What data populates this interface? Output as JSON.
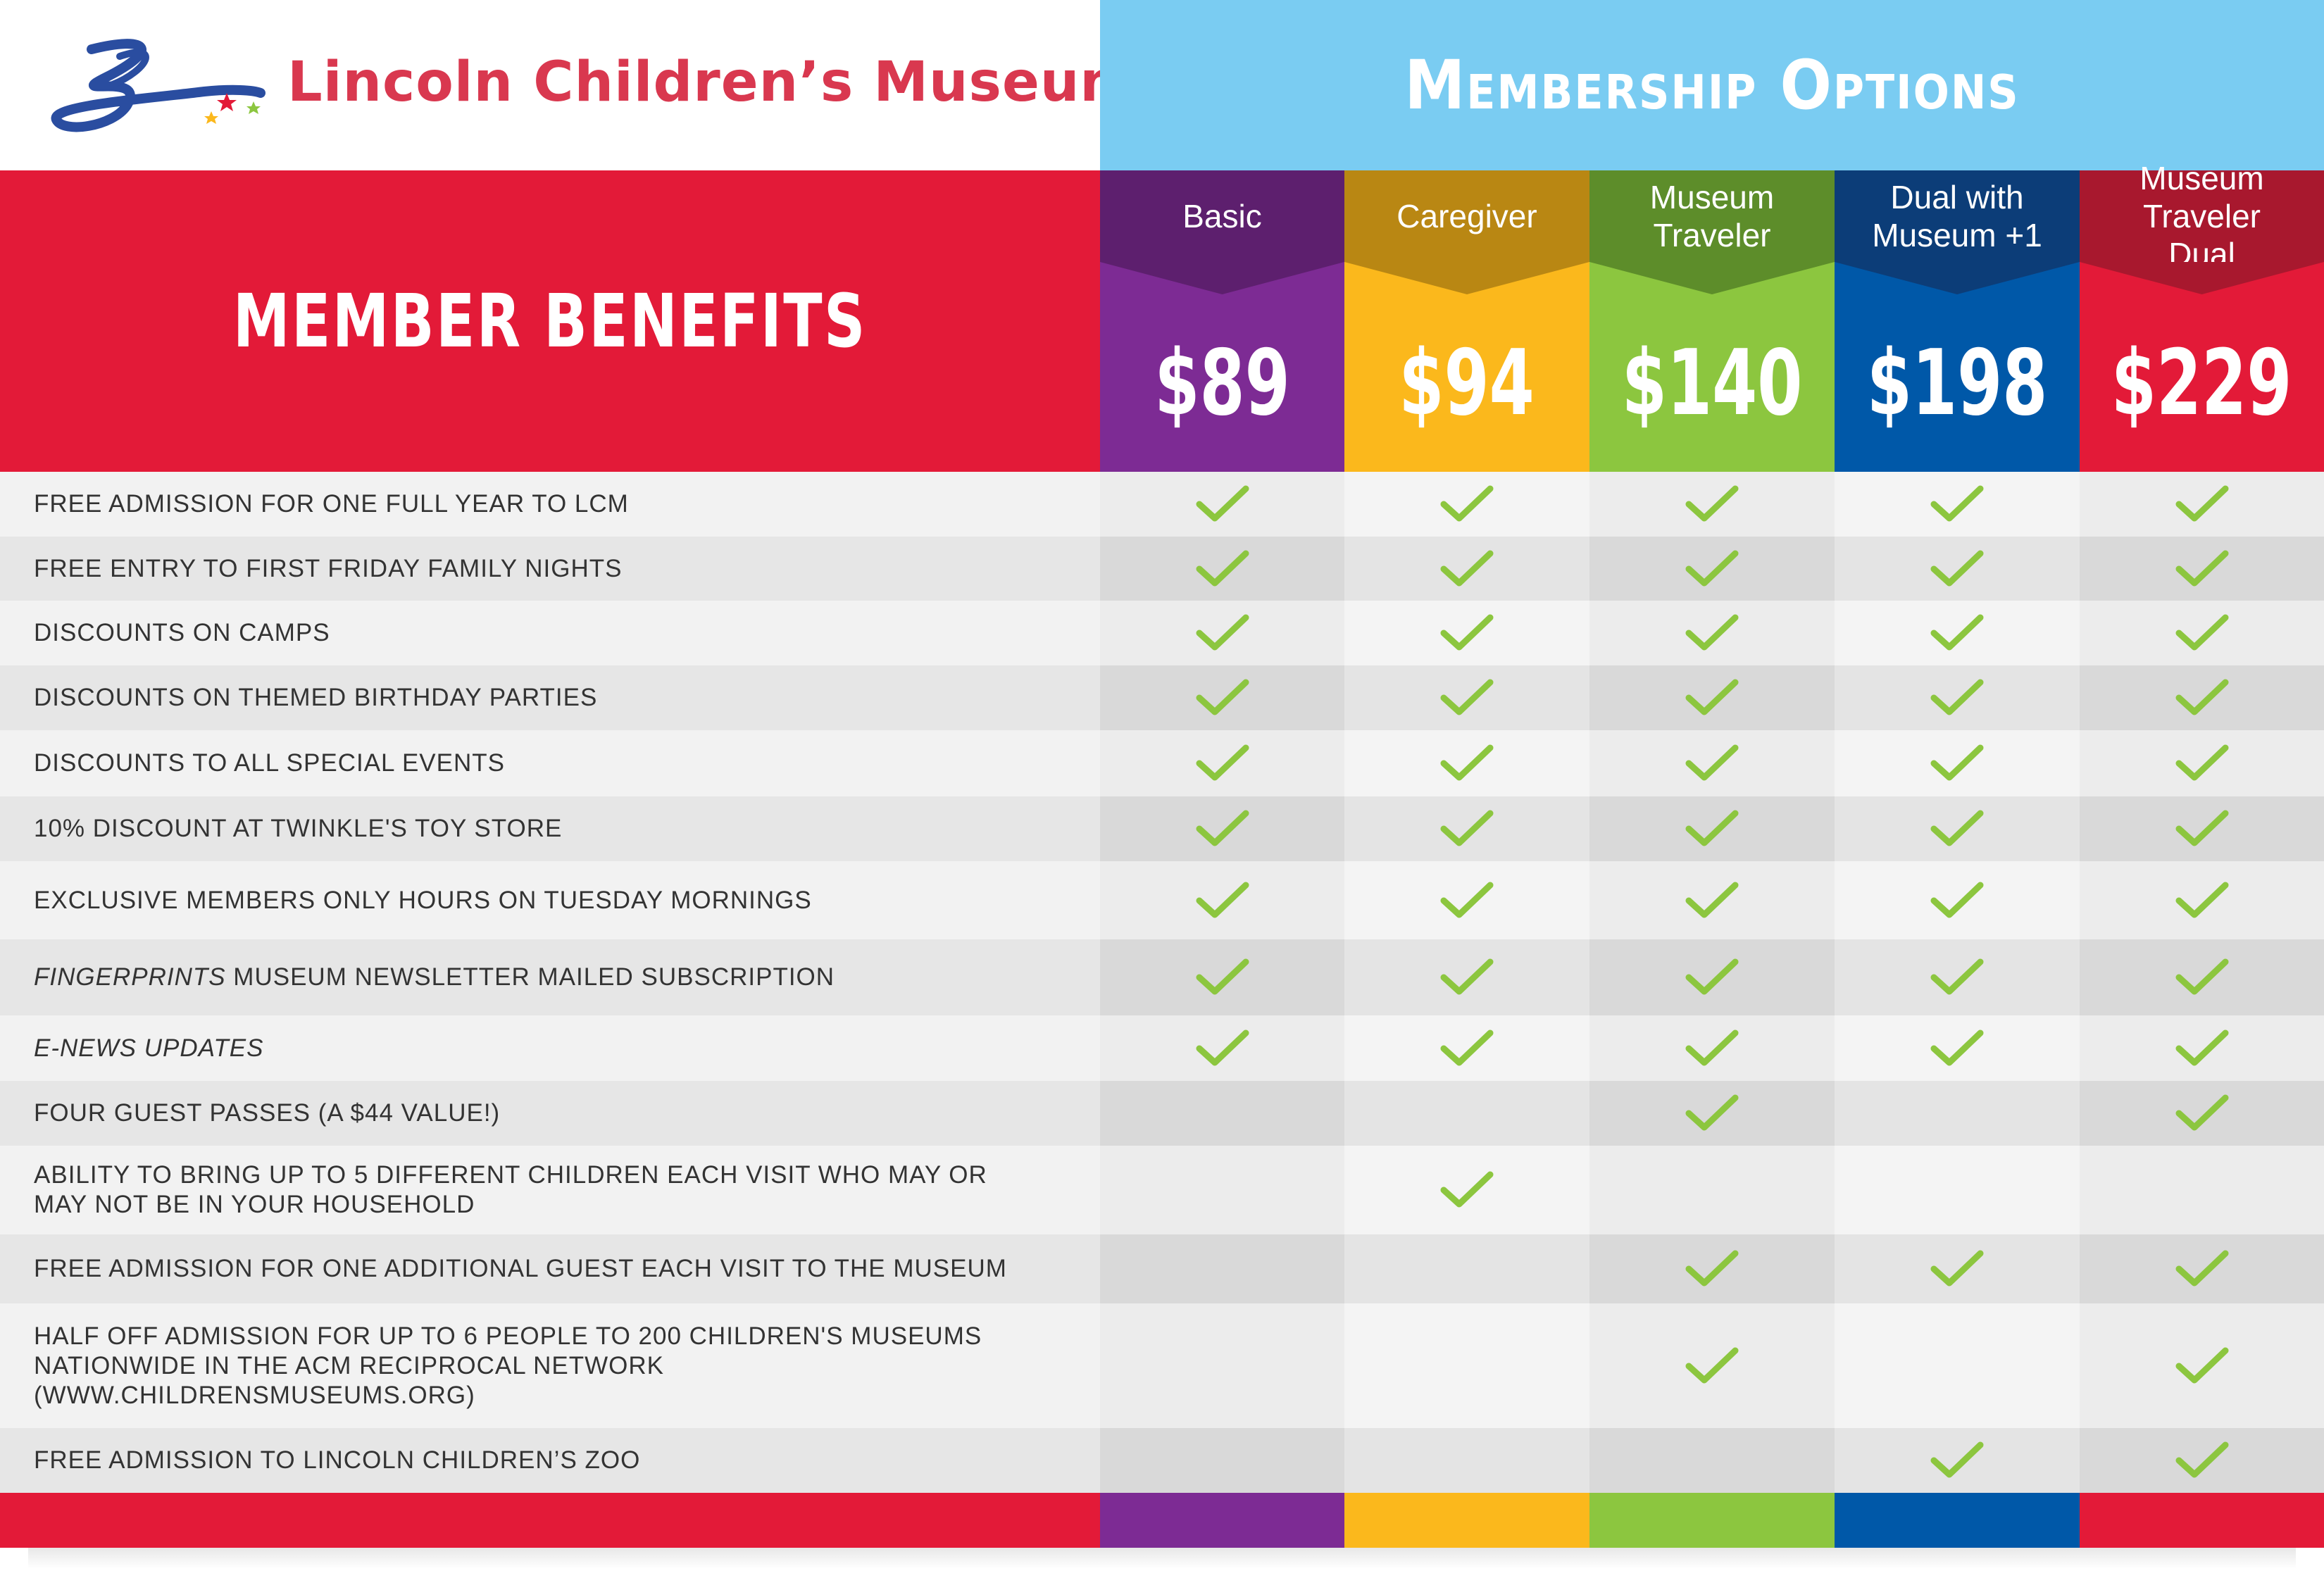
{
  "logo": {
    "name": "Lincoln Children’s Museum"
  },
  "banner": {
    "title": "Membership Options"
  },
  "benefits_heading": "MEMBER BENEFITS",
  "colors": {
    "header_red": "#e31a38",
    "sky_blue": "#7accf2",
    "check_green": "#8cc63f",
    "row_light": "#f2f2f2",
    "row_dark": "#e6e6e6"
  },
  "tiers": [
    {
      "name": "Basic",
      "price": "$89",
      "top_color": "#5d1f6e",
      "color": "#7d2b94"
    },
    {
      "name": "Caregiver",
      "price": "$94",
      "top_color": "#b98713",
      "color": "#fbb81c"
    },
    {
      "name": "Museum\nTraveler",
      "price": "$140",
      "top_color": "#5d8d2a",
      "color": "#8cc63f"
    },
    {
      "name": "Dual with\nMuseum +1",
      "price": "$198",
      "top_color": "#0c3d78",
      "color": "#0058a8"
    },
    {
      "name": "Museum\nTraveler\nDual",
      "price": "$229",
      "top_color": "#a8182e",
      "color": "#e31a38"
    }
  ],
  "benefits": [
    {
      "label": "FREE ADMISSION FOR ONE FULL YEAR TO LCM",
      "checks": [
        true,
        true,
        true,
        true,
        true
      ]
    },
    {
      "label": "FREE ENTRY TO FIRST FRIDAY FAMILY NIGHTS",
      "checks": [
        true,
        true,
        true,
        true,
        true
      ]
    },
    {
      "label": "DISCOUNTS ON CAMPS",
      "checks": [
        true,
        true,
        true,
        true,
        true
      ]
    },
    {
      "label": "DISCOUNTS ON THEMED BIRTHDAY PARTIES",
      "checks": [
        true,
        true,
        true,
        true,
        true
      ]
    },
    {
      "label": "DISCOUNTS TO ALL SPECIAL EVENTS",
      "checks": [
        true,
        true,
        true,
        true,
        true
      ]
    },
    {
      "label": "10% DISCOUNT AT TWINKLE'S TOY STORE",
      "checks": [
        true,
        true,
        true,
        true,
        true
      ]
    },
    {
      "label": "EXCLUSIVE MEMBERS ONLY HOURS ON TUESDAY MORNINGS",
      "checks": [
        true,
        true,
        true,
        true,
        true
      ]
    },
    {
      "label_italic": "FINGERPRINTS",
      "label": " MUSEUM NEWSLETTER MAILED SUBSCRIPTION",
      "checks": [
        true,
        true,
        true,
        true,
        true
      ]
    },
    {
      "label_italic": "E-NEWS UPDATES",
      "label": "",
      "checks": [
        true,
        true,
        true,
        true,
        true
      ]
    },
    {
      "label": "FOUR GUEST PASSES (A $44 VALUE!)",
      "checks": [
        false,
        false,
        true,
        false,
        true
      ]
    },
    {
      "label": "ABILITY TO BRING UP TO 5 DIFFERENT CHILDREN EACH VISIT WHO MAY OR MAY NOT BE IN YOUR HOUSEHOLD",
      "checks": [
        false,
        true,
        false,
        false,
        false
      ]
    },
    {
      "label": "FREE ADMISSION FOR ONE ADDITIONAL GUEST EACH VISIT TO THE MUSEUM",
      "checks": [
        false,
        false,
        true,
        true,
        true
      ]
    },
    {
      "label": "HALF OFF ADMISSION FOR UP TO 6 PEOPLE TO 200 CHILDREN'S MUSEUMS NATIONWIDE IN THE ACM RECIPROCAL NETWORK (WWW.CHILDRENSMUSEUMS.ORG)",
      "checks": [
        false,
        false,
        true,
        false,
        true
      ]
    },
    {
      "label": "FREE ADMISSION TO LINCOLN CHILDREN’S ZOO",
      "checks": [
        false,
        false,
        false,
        true,
        true
      ]
    }
  ]
}
